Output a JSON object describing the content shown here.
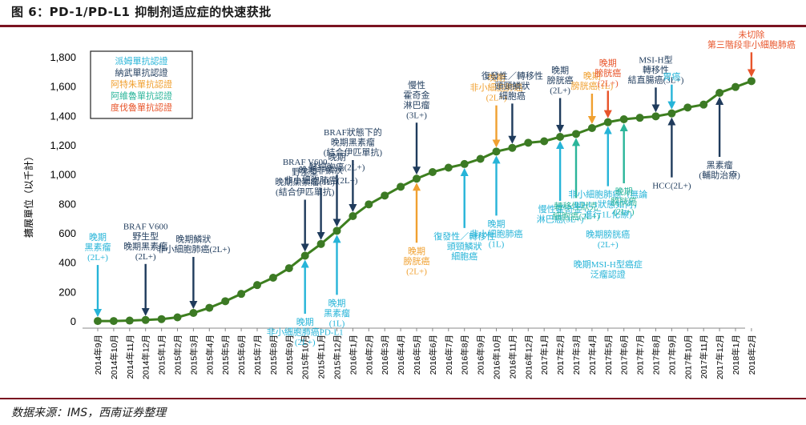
{
  "figure": {
    "title": "图 6：PD-1/PD-L1 抑制剂适应症的快速获批",
    "source": "数据来源：IMS，西南证券整理"
  },
  "colors": {
    "title_rule": "#7a1320",
    "line": "#3d7f1f",
    "marker": "#3c7a24",
    "navy": "#1f3b5c",
    "orange": "#f0a030",
    "red": "#e8552b",
    "cyan": "#26b4d8",
    "teal": "#2bb59a"
  },
  "chart_data": {
    "type": "line",
    "title": "",
    "xlabel": "",
    "ylabel": "擴展單位（以千計）",
    "ylim": [
      0,
      1800
    ],
    "yticks": [
      0,
      200,
      400,
      600,
      800,
      1000,
      1200,
      1400,
      1600,
      1800
    ],
    "ytick_labels": [
      "0",
      "200",
      "400",
      "600",
      "800",
      "1,000",
      "1,200",
      "1,400",
      "1,600",
      "1,800"
    ],
    "grid": false,
    "categories": [
      "2014年9月",
      "2014年10月",
      "2014年11月",
      "2014年12月",
      "2015年1月",
      "2015年2月",
      "2015年3月",
      "2015年4月",
      "2015年5月",
      "2015年6月",
      "2015年7月",
      "2015年8月",
      "2015年9月",
      "2015年10月",
      "2015年11月",
      "2015年12月",
      "2016年1月",
      "2016年2月",
      "2016年3月",
      "2016年4月",
      "2016年5月",
      "2016年6月",
      "2016年7月",
      "2016年8月",
      "2016年9月",
      "2016年10月",
      "2016年11月",
      "2016年12月",
      "2017年1月",
      "2017年2月",
      "2017年3月",
      "2017年4月",
      "2017年5月",
      "2017年6月",
      "2017年7月",
      "2017年8月",
      "2017年9月",
      "2017年10月",
      "2017年11月",
      "2017年12月",
      "2018年1月",
      "2018年2月"
    ],
    "series": [
      {
        "values": [
          5,
          5,
          8,
          12,
          18,
          30,
          60,
          95,
          140,
          190,
          250,
          300,
          365,
          450,
          530,
          620,
          720,
          800,
          860,
          920,
          975,
          1020,
          1050,
          1075,
          1110,
          1160,
          1185,
          1220,
          1230,
          1260,
          1280,
          1320,
          1360,
          1380,
          1390,
          1400,
          1420,
          1460,
          1480,
          1560,
          1600,
          1640
        ]
      }
    ],
    "legend": {
      "placement": "top-left",
      "entries": [
        {
          "label": "派姆單抗認證",
          "color": "#26b4d8"
        },
        {
          "label": "納武單抗認證",
          "color": "#1f3b5c"
        },
        {
          "label": "阿特朱單抗認證",
          "color": "#f0a030"
        },
        {
          "label": "阿維魯單抗認證",
          "color": "#2bb59a"
        },
        {
          "label": "度伐魯單抗認證",
          "color": "#e8552b"
        }
      ]
    },
    "annotations": [
      {
        "idx": 0,
        "dir": "down",
        "color": "#26b4d8",
        "lines": [
          "晚期",
          "黑素瘤",
          "(2L+)"
        ]
      },
      {
        "idx": 3,
        "dir": "down",
        "color": "#1f3b5c",
        "lines": [
          "BRAF V600",
          "野生型",
          "晚期黑素瘤",
          "(2L+)"
        ]
      },
      {
        "idx": 6,
        "dir": "down",
        "color": "#1f3b5c",
        "lines": [
          "晚期鱗狀",
          "非小細胞肺癌(2L+)"
        ]
      },
      {
        "idx": 13,
        "dir": "down",
        "color": "#1f3b5c",
        "lines": [
          "BRAF V600",
          "野生型",
          "晚期黑素瘤(1L)",
          "(結合伊匹單抗)"
        ]
      },
      {
        "idx": 14,
        "dir": "down",
        "color": "#1f3b5c",
        "lines": [
          "晚期非鱗狀",
          "非小細胞肺癌(2L+)"
        ]
      },
      {
        "idx": 15,
        "dir": "down",
        "color": "#1f3b5c",
        "lines": [
          "晚期",
          "腎細胞癌(2L+)"
        ]
      },
      {
        "idx": 16,
        "dir": "down",
        "color": "#1f3b5c",
        "lines": [
          "BRAF狀態下的",
          "晚期黑素瘤",
          "(結合伊匹單抗)"
        ]
      },
      {
        "idx": 20,
        "dir": "down",
        "color": "#1f3b5c",
        "lines": [
          "慢性",
          "霍奇金",
          "淋巴瘤",
          "(3L+)"
        ]
      },
      {
        "idx": 25,
        "dir": "down",
        "color": "#f0a030",
        "lines": [
          "晚期",
          "非小細胞肺癌",
          "(2L+)"
        ]
      },
      {
        "idx": 26,
        "dir": "down",
        "color": "#1f3b5c",
        "lines": [
          "復發性／轉移性",
          "頭頸鱗狀",
          "細胞癌"
        ]
      },
      {
        "idx": 29,
        "dir": "down",
        "color": "#1f3b5c",
        "lines": [
          "晚期",
          "膀胱癌",
          "(2L+)"
        ]
      },
      {
        "idx": 31,
        "dir": "down",
        "color": "#f0a030",
        "lines": [
          "晚期",
          "膀胱癌(1L)"
        ]
      },
      {
        "idx": 32,
        "dir": "down",
        "color": "#e8552b",
        "lines": [
          "晚期",
          "膀胱癌",
          "(2L+)"
        ]
      },
      {
        "idx": 35,
        "dir": "down",
        "color": "#1f3b5c",
        "lines": [
          "MSI-H型",
          "轉移性",
          "結直腸癌(3L+)"
        ]
      },
      {
        "idx": 36,
        "dir": "down",
        "color": "#26b4d8",
        "lines": [
          "胃癌"
        ]
      },
      {
        "idx": 41,
        "dir": "down",
        "color": "#e8552b",
        "lines": [
          "未切除",
          "第三階段非小細胞肺癌"
        ]
      },
      {
        "idx": 13,
        "dir": "up",
        "color": "#26b4d8",
        "lines": [
          "晚期",
          "非小細胞肺癌PD-L1",
          "(2L+)"
        ]
      },
      {
        "idx": 15,
        "dir": "up",
        "color": "#26b4d8",
        "lines": [
          "晚期",
          "黑素瘤",
          "(1L)"
        ]
      },
      {
        "idx": 20,
        "dir": "up",
        "color": "#f0a030",
        "lines": [
          "晚期",
          "膀胱癌",
          "(2L+)"
        ]
      },
      {
        "idx": 23,
        "dir": "up",
        "color": "#26b4d8",
        "lines": [
          "復發性／轉移性",
          "頭頸鱗狀",
          "細胞癌"
        ]
      },
      {
        "idx": 25,
        "dir": "up",
        "color": "#26b4d8",
        "lines": [
          "晚期",
          "非小細胞肺癌",
          "(1L)"
        ]
      },
      {
        "idx": 29,
        "dir": "up",
        "color": "#26b4d8",
        "lines": [
          "慢性霍奇金",
          "淋巴癌(3L+)"
        ]
      },
      {
        "idx": 30,
        "dir": "up",
        "color": "#2bb59a",
        "lines": [
          "轉移性默克",
          "細胞癌(2L+)"
        ]
      },
      {
        "idx": 32,
        "dir": "up",
        "color": "#26b4d8",
        "lines": [
          "非小細胞肺癌（無論",
          "PD-L1狀態如何，",
          "進行1L化療)",
          "",
          "晚期膀胱癌",
          "(2L+)",
          "",
          "晚期MSI-H型癌症",
          "泛瘤認證"
        ]
      },
      {
        "idx": 33,
        "dir": "up",
        "color": "#2bb59a",
        "lines": [
          "晚期",
          "膀胱癌",
          "(2L+)"
        ]
      },
      {
        "idx": 36,
        "dir": "up",
        "color": "#1f3b5c",
        "lines": [
          "HCC(2L+)"
        ]
      },
      {
        "idx": 39,
        "dir": "up",
        "color": "#1f3b5c",
        "lines": [
          "黑素瘤",
          "(輔助治療)"
        ]
      }
    ]
  }
}
